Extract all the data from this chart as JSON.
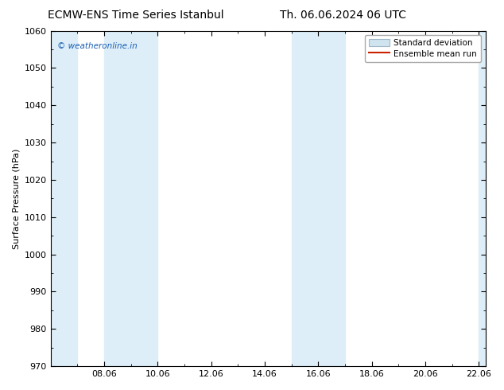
{
  "title_left": "ECMW-ENS Time Series Istanbul",
  "title_right": "Th. 06.06.2024 06 UTC",
  "ylabel": "Surface Pressure (hPa)",
  "ylim": [
    970,
    1060
  ],
  "yticks": [
    970,
    980,
    990,
    1000,
    1010,
    1020,
    1030,
    1040,
    1050,
    1060
  ],
  "x_min": 6.0,
  "x_max": 22.25,
  "xtick_positions": [
    8,
    10,
    12,
    14,
    16,
    18,
    20,
    22
  ],
  "xtick_labels": [
    "08.06",
    "10.06",
    "12.06",
    "14.06",
    "16.06",
    "18.06",
    "20.06",
    "22.06"
  ],
  "shade_bands": [
    {
      "x_start": 6.0,
      "x_end": 7.0,
      "color": "#ddeef8"
    },
    {
      "x_start": 8.0,
      "x_end": 10.0,
      "color": "#ddeef8"
    },
    {
      "x_start": 15.0,
      "x_end": 17.0,
      "color": "#ddeef8"
    },
    {
      "x_start": 22.0,
      "x_end": 22.25,
      "color": "#ddeef8"
    }
  ],
  "watermark": "© weatheronline.in",
  "watermark_color": "#1a5fb4",
  "legend_std_label": "Standard deviation",
  "legend_mean_label": "Ensemble mean run",
  "legend_std_facecolor": "#d0e4f0",
  "legend_std_edgecolor": "#a0b8c8",
  "legend_mean_color": "#cc2200",
  "background_color": "#ffffff",
  "title_fontsize": 10,
  "ylabel_fontsize": 8,
  "tick_fontsize": 8,
  "legend_fontsize": 7.5,
  "watermark_fontsize": 7.5
}
